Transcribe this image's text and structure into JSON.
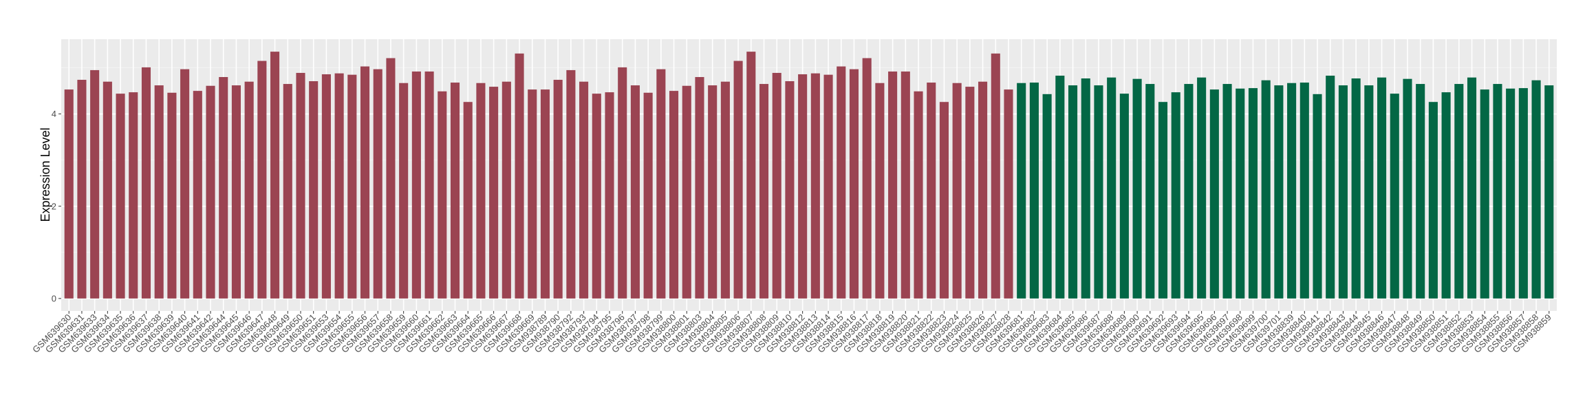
{
  "chart_data": {
    "type": "bar",
    "title": "",
    "xlabel": "",
    "ylabel": "Expression Level",
    "ylim": [
      -0.27,
      5.62
    ],
    "yticks": [
      0,
      2,
      4
    ],
    "grid": true,
    "legend": "none",
    "colors": {
      "group1": "#9b4452",
      "group2": "#036745",
      "panel": "#ebebeb",
      "grid": "#ffffff"
    },
    "categories": [
      "GSM639630",
      "GSM639631",
      "GSM639633",
      "GSM639634",
      "GSM639635",
      "GSM639636",
      "GSM639637",
      "GSM639638",
      "GSM639639",
      "GSM639640",
      "GSM639641",
      "GSM639642",
      "GSM639644",
      "GSM639645",
      "GSM639646",
      "GSM639647",
      "GSM639648",
      "GSM639649",
      "GSM639650",
      "GSM639651",
      "GSM639653",
      "GSM639654",
      "GSM639655",
      "GSM639656",
      "GSM639657",
      "GSM639658",
      "GSM639659",
      "GSM639660",
      "GSM639661",
      "GSM639662",
      "GSM639663",
      "GSM639664",
      "GSM639665",
      "GSM639666",
      "GSM639667",
      "GSM639668",
      "GSM639669",
      "GSM938789",
      "GSM938790",
      "GSM938792",
      "GSM938793",
      "GSM938794",
      "GSM938795",
      "GSM938796",
      "GSM938797",
      "GSM938798",
      "GSM938799",
      "GSM938800",
      "GSM938801",
      "GSM938803",
      "GSM938804",
      "GSM938805",
      "GSM938806",
      "GSM938807",
      "GSM938808",
      "GSM938809",
      "GSM938810",
      "GSM938812",
      "GSM938813",
      "GSM938814",
      "GSM938815",
      "GSM938816",
      "GSM938817",
      "GSM938818",
      "GSM938819",
      "GSM938820",
      "GSM938821",
      "GSM938822",
      "GSM938823",
      "GSM938824",
      "GSM938825",
      "GSM938826",
      "GSM938827",
      "GSM938828",
      "GSM639681",
      "GSM639682",
      "GSM639683",
      "GSM639684",
      "GSM639685",
      "GSM639686",
      "GSM639687",
      "GSM639688",
      "GSM639689",
      "GSM639690",
      "GSM639691",
      "GSM639692",
      "GSM639693",
      "GSM639694",
      "GSM639695",
      "GSM639696",
      "GSM639697",
      "GSM639698",
      "GSM639699",
      "GSM639700",
      "GSM639701",
      "GSM938839",
      "GSM938840",
      "GSM938841",
      "GSM938842",
      "GSM938843",
      "GSM938844",
      "GSM938845",
      "GSM938846",
      "GSM938847",
      "GSM938848",
      "GSM938849",
      "GSM938850",
      "GSM938851",
      "GSM938852",
      "GSM938853",
      "GSM938854",
      "GSM938855",
      "GSM938856",
      "GSM938857",
      "GSM938858",
      "GSM938859"
    ],
    "values": [
      4.53,
      4.74,
      4.95,
      4.7,
      4.44,
      4.47,
      5.01,
      4.62,
      4.46,
      4.97,
      4.5,
      4.61,
      4.8,
      4.62,
      4.7,
      5.15,
      5.35,
      4.65,
      4.89,
      4.71,
      4.86,
      4.88,
      4.85,
      5.03,
      4.97,
      5.21,
      4.67,
      4.92,
      4.92,
      4.49,
      4.68,
      4.26,
      4.67,
      4.59,
      4.7,
      5.31,
      4.53,
      4.53,
      4.74,
      4.95,
      4.7,
      4.44,
      4.47,
      5.01,
      4.62,
      4.46,
      4.97,
      4.5,
      4.61,
      4.8,
      4.62,
      4.7,
      5.15,
      5.35,
      4.65,
      4.89,
      4.71,
      4.86,
      4.88,
      4.85,
      5.03,
      4.97,
      5.21,
      4.67,
      4.92,
      4.92,
      4.49,
      4.68,
      4.26,
      4.67,
      4.59,
      4.7,
      5.31,
      4.53,
      4.67,
      4.68,
      4.43,
      4.83,
      4.62,
      4.77,
      4.62,
      4.79,
      4.44,
      4.76,
      4.65,
      4.26,
      4.47,
      4.65,
      4.79,
      4.53,
      4.65,
      4.55,
      4.56,
      4.73,
      4.62,
      4.67,
      4.68,
      4.43,
      4.83,
      4.62,
      4.77,
      4.62,
      4.79,
      4.44,
      4.76,
      4.65,
      4.26,
      4.47,
      4.65,
      4.79,
      4.53,
      4.65,
      4.55,
      4.56,
      4.73,
      4.62
    ],
    "groups": [
      1,
      1,
      1,
      1,
      1,
      1,
      1,
      1,
      1,
      1,
      1,
      1,
      1,
      1,
      1,
      1,
      1,
      1,
      1,
      1,
      1,
      1,
      1,
      1,
      1,
      1,
      1,
      1,
      1,
      1,
      1,
      1,
      1,
      1,
      1,
      1,
      1,
      1,
      1,
      1,
      1,
      1,
      1,
      1,
      1,
      1,
      1,
      1,
      1,
      1,
      1,
      1,
      1,
      1,
      1,
      1,
      1,
      1,
      1,
      1,
      1,
      1,
      1,
      1,
      1,
      1,
      1,
      1,
      1,
      1,
      1,
      1,
      1,
      1,
      2,
      2,
      2,
      2,
      2,
      2,
      2,
      2,
      2,
      2,
      2,
      2,
      2,
      2,
      2,
      2,
      2,
      2,
      2,
      2,
      2,
      2,
      2,
      2,
      2,
      2,
      2,
      2,
      2,
      2,
      2,
      2,
      2,
      2,
      2,
      2,
      2,
      2,
      2,
      2,
      2,
      2
    ]
  }
}
